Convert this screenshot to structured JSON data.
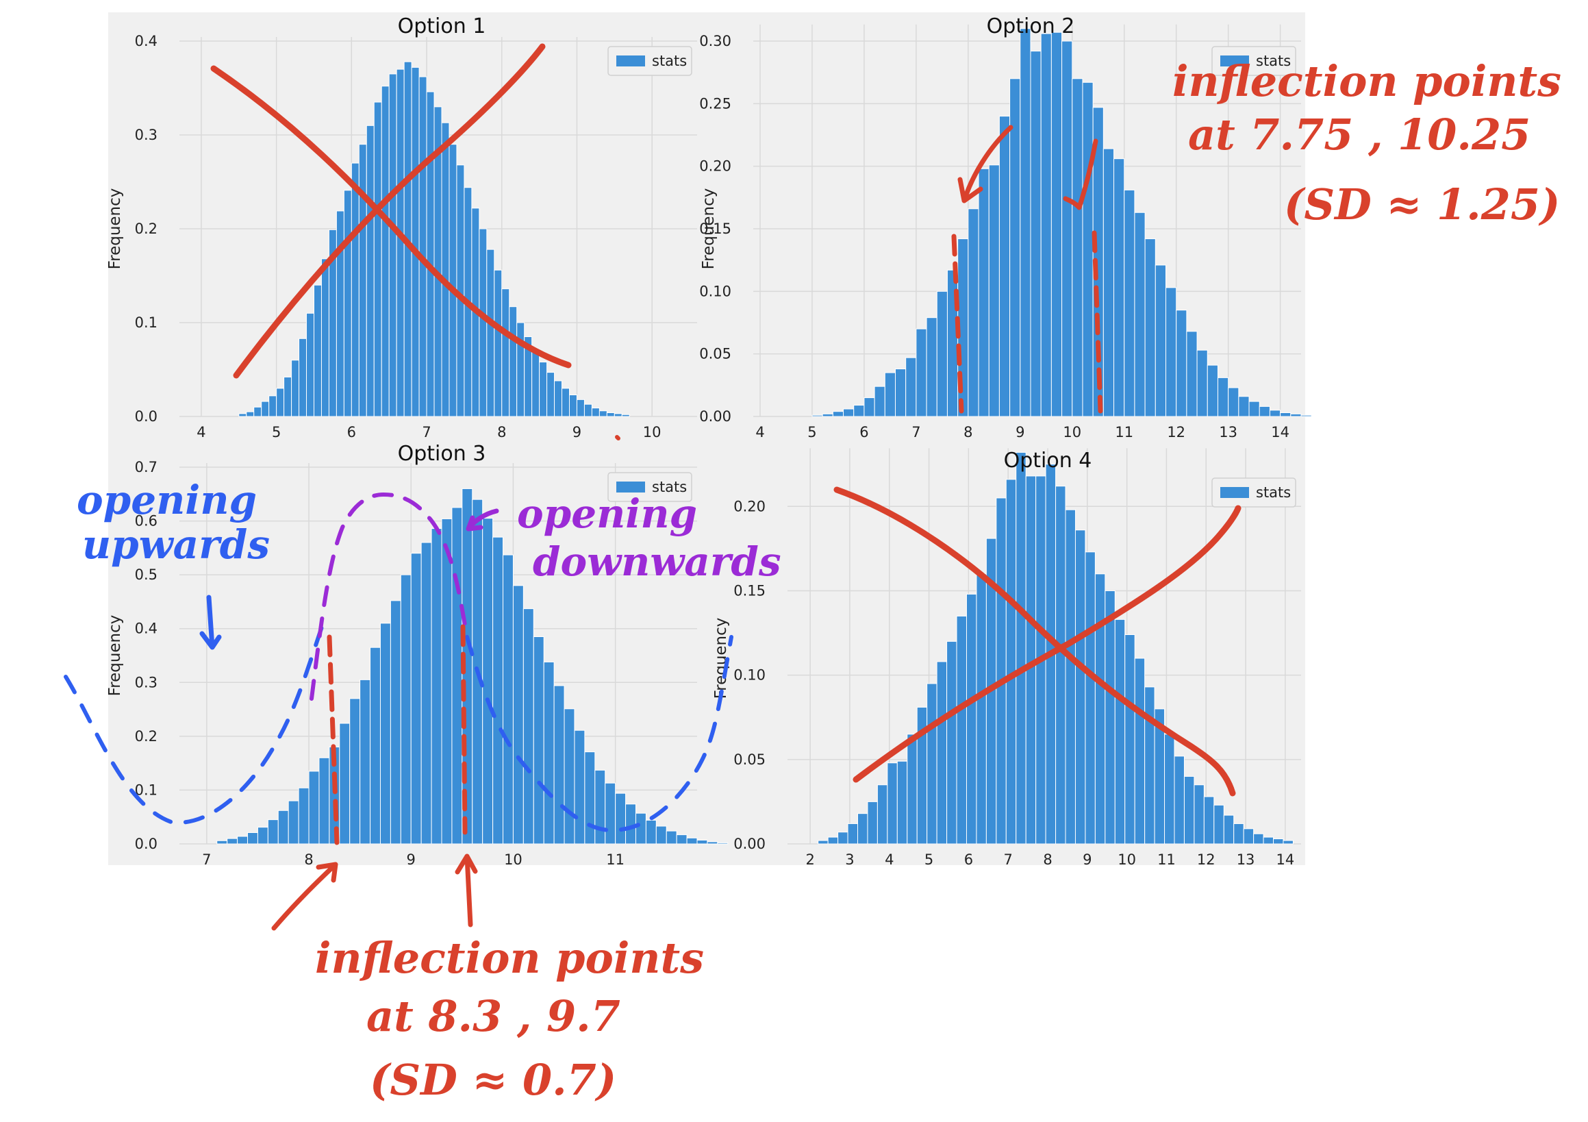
{
  "figure": {
    "background_color": "#f0f0f0",
    "bar_color": "#3b8ed6",
    "grid_color": "#d9d9d9"
  },
  "chart_data": [
    {
      "type": "bar",
      "title": "Option 1",
      "ylabel": "Frequency",
      "legend": "stats",
      "legend_position": "top-right",
      "grid": true,
      "xlim": [
        3.8,
        10.6
      ],
      "ylim": [
        0,
        0.4
      ],
      "xticks": [
        "4",
        "5",
        "6",
        "7",
        "8",
        "9",
        "10"
      ],
      "yticks": [
        "0.0",
        "0.1",
        "0.2",
        "0.3",
        "0.4"
      ],
      "x_start": 4.5,
      "bin_width": 0.1,
      "values": [
        0.003,
        0.005,
        0.01,
        0.016,
        0.022,
        0.03,
        0.042,
        0.06,
        0.083,
        0.11,
        0.14,
        0.168,
        0.199,
        0.219,
        0.241,
        0.27,
        0.29,
        0.31,
        0.335,
        0.352,
        0.365,
        0.37,
        0.378,
        0.372,
        0.362,
        0.346,
        0.33,
        0.313,
        0.29,
        0.268,
        0.244,
        0.222,
        0.2,
        0.178,
        0.156,
        0.136,
        0.117,
        0.1,
        0.085,
        0.071,
        0.058,
        0.047,
        0.038,
        0.03,
        0.023,
        0.018,
        0.013,
        0.009,
        0.006,
        0.004,
        0.003,
        0.002
      ]
    },
    {
      "type": "bar",
      "title": "Option 2",
      "ylabel": "Frequency",
      "legend": "stats",
      "legend_position": "top-right",
      "grid": true,
      "xlim": [
        4,
        14.4
      ],
      "ylim": [
        0,
        0.3
      ],
      "xticks": [
        "4",
        "5",
        "6",
        "7",
        "8",
        "9",
        "10",
        "11",
        "12",
        "13",
        "14"
      ],
      "yticks": [
        "0.00",
        "0.05",
        "0.10",
        "0.15",
        "0.20",
        "0.25",
        "0.30"
      ],
      "x_start": 5.0,
      "bin_width": 0.2,
      "values": [
        0.001,
        0.002,
        0.004,
        0.006,
        0.009,
        0.015,
        0.024,
        0.035,
        0.038,
        0.047,
        0.07,
        0.079,
        0.1,
        0.117,
        0.142,
        0.166,
        0.198,
        0.201,
        0.24,
        0.27,
        0.31,
        0.292,
        0.306,
        0.307,
        0.3,
        0.27,
        0.267,
        0.247,
        0.214,
        0.206,
        0.181,
        0.163,
        0.142,
        0.121,
        0.103,
        0.085,
        0.068,
        0.053,
        0.041,
        0.031,
        0.023,
        0.016,
        0.012,
        0.008,
        0.005,
        0.003,
        0.002,
        0.001
      ]
    },
    {
      "type": "bar",
      "title": "Option 3",
      "ylabel": "Frequency",
      "legend": "stats",
      "legend_position": "top-right",
      "grid": true,
      "xlim": [
        6.8,
        11.8
      ],
      "ylim": [
        0,
        0.7
      ],
      "xticks": [
        "7",
        "8",
        "9",
        "10",
        "11"
      ],
      "yticks": [
        "0.0",
        "0.1",
        "0.2",
        "0.3",
        "0.4",
        "0.5",
        "0.6",
        "0.7"
      ],
      "x_start": 7.1,
      "bin_width": 0.1,
      "values": [
        0.006,
        0.01,
        0.014,
        0.021,
        0.031,
        0.045,
        0.062,
        0.08,
        0.104,
        0.135,
        0.16,
        0.18,
        0.224,
        0.27,
        0.305,
        0.365,
        0.41,
        0.452,
        0.5,
        0.54,
        0.56,
        0.586,
        0.604,
        0.625,
        0.66,
        0.64,
        0.605,
        0.57,
        0.537,
        0.48,
        0.437,
        0.385,
        0.338,
        0.294,
        0.251,
        0.211,
        0.171,
        0.137,
        0.113,
        0.094,
        0.074,
        0.057,
        0.044,
        0.033,
        0.024,
        0.017,
        0.011,
        0.007,
        0.004,
        0.002
      ]
    },
    {
      "type": "bar",
      "title": "Option 4",
      "ylabel": "Frequency",
      "legend": "stats",
      "legend_position": "top-right",
      "grid": true,
      "xlim": [
        1.6,
        14.4
      ],
      "ylim": [
        0,
        0.22
      ],
      "xticks": [
        "2",
        "3",
        "4",
        "5",
        "6",
        "7",
        "8",
        "9",
        "10",
        "11",
        "12",
        "13",
        "14"
      ],
      "yticks": [
        "0.00",
        "0.05",
        "0.10",
        "0.15",
        "0.20"
      ],
      "x_start": 2.2,
      "bin_width": 0.25,
      "values": [
        0.002,
        0.004,
        0.007,
        0.012,
        0.018,
        0.025,
        0.035,
        0.048,
        0.049,
        0.065,
        0.081,
        0.095,
        0.108,
        0.12,
        0.135,
        0.148,
        0.16,
        0.181,
        0.205,
        0.216,
        0.232,
        0.218,
        0.218,
        0.225,
        0.212,
        0.198,
        0.186,
        0.173,
        0.16,
        0.15,
        0.133,
        0.124,
        0.11,
        0.093,
        0.08,
        0.065,
        0.052,
        0.04,
        0.035,
        0.028,
        0.023,
        0.017,
        0.012,
        0.009,
        0.006,
        0.004,
        0.003,
        0.002
      ]
    }
  ],
  "annotations": {
    "opt2_inflection": "inflection points\nat  7.75 , 10.25\n(SD ≈ 1.25)",
    "opt3_opening_upwards": "opening\nupwards",
    "opt3_opening_downwards": "opening\ndownwards",
    "opt3_inflection": "inflection points\nat 8.3 , 9.7\n(SD ≈ 0.7)",
    "colors": {
      "red": "#d9412c",
      "blue": "#2f5ff0",
      "purple": "#9b2bd6"
    }
  }
}
